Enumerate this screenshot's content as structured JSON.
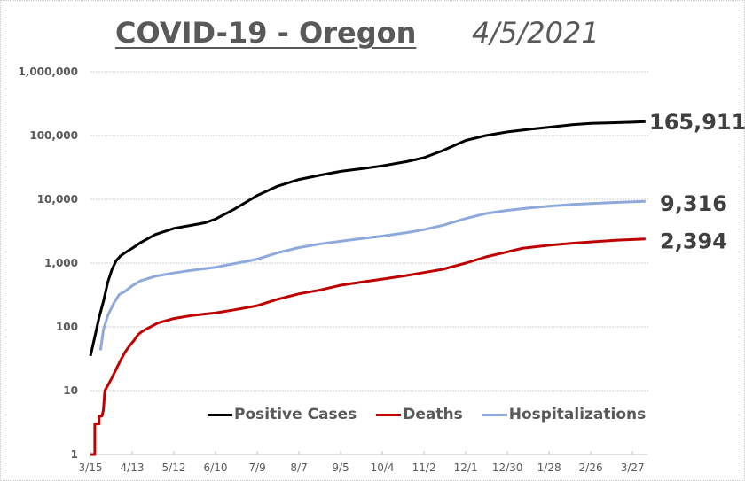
{
  "title": "COVID-19  - Oregon",
  "date": "4/5/2021",
  "chart_data": {
    "type": "line",
    "title": "COVID-19  - Oregon",
    "subtitle": "4/5/2021",
    "xlabel": "",
    "ylabel": "",
    "yscale": "log",
    "ylim": [
      1,
      1000000
    ],
    "y_ticks": [
      1,
      10,
      100,
      1000,
      10000,
      100000,
      1000000
    ],
    "y_tick_labels": [
      "1",
      "10",
      "100",
      "1,000",
      "10,000",
      "100,000",
      "1,000,000"
    ],
    "x_unit": "days since 3/15/2020",
    "xlim": [
      0,
      386
    ],
    "x_ticks": [
      0,
      29,
      58,
      87,
      116,
      145,
      174,
      203,
      232,
      261,
      290,
      319,
      348,
      377
    ],
    "x_tick_labels": [
      "3/15",
      "4/13",
      "5/12",
      "6/10",
      "7/9",
      "8/7",
      "9/5",
      "10/4",
      "11/2",
      "12/1",
      "12/30",
      "1/28",
      "2/26",
      "3/27"
    ],
    "grid": true,
    "legend_position": "bottom-right",
    "series": [
      {
        "name": "Positive Cases",
        "color": "#000000",
        "end_label": "165,911",
        "x": [
          0,
          3,
          6,
          9,
          12,
          15,
          18,
          21,
          25,
          29,
          35,
          45,
          58,
          70,
          80,
          87,
          100,
          110,
          116,
          130,
          145,
          160,
          174,
          190,
          203,
          220,
          232,
          245,
          261,
          275,
          290,
          305,
          319,
          335,
          348,
          365,
          377,
          386
        ],
        "y": [
          35,
          70,
          140,
          250,
          500,
          800,
          1100,
          1300,
          1500,
          1700,
          2100,
          2800,
          3500,
          3900,
          4300,
          4900,
          7000,
          9500,
          11500,
          16000,
          20500,
          24000,
          27500,
          30500,
          33500,
          39000,
          45000,
          58000,
          84000,
          100000,
          114000,
          125000,
          135000,
          148000,
          155000,
          159000,
          162000,
          165911
        ]
      },
      {
        "name": "Deaths",
        "color": "#C00000",
        "end_label": "2,394",
        "x": [
          0,
          3,
          3,
          6,
          6,
          8,
          9,
          10,
          12,
          15,
          18,
          21,
          24,
          27,
          30,
          33,
          36,
          40,
          47,
          58,
          70,
          87,
          100,
          116,
          130,
          145,
          160,
          174,
          190,
          203,
          220,
          232,
          245,
          261,
          275,
          290,
          300,
          319,
          335,
          348,
          365,
          386
        ],
        "y": [
          1,
          1,
          3,
          3,
          4,
          4,
          5,
          10,
          12,
          16,
          22,
          30,
          40,
          50,
          60,
          75,
          85,
          95,
          115,
          135,
          150,
          165,
          185,
          215,
          270,
          330,
          380,
          450,
          510,
          560,
          640,
          710,
          800,
          1000,
          1250,
          1500,
          1700,
          1900,
          2050,
          2150,
          2280,
          2394
        ]
      },
      {
        "name": "Hospitalizations",
        "color": "#8EA9DB",
        "end_label": "9,316",
        "x": [
          7,
          9,
          12,
          16,
          20,
          24,
          29,
          35,
          45,
          58,
          70,
          87,
          100,
          116,
          130,
          145,
          160,
          174,
          190,
          203,
          220,
          232,
          245,
          261,
          275,
          290,
          305,
          319,
          335,
          348,
          365,
          377,
          386
        ],
        "y": [
          43,
          90,
          150,
          230,
          320,
          360,
          440,
          530,
          620,
          700,
          770,
          860,
          980,
          1150,
          1450,
          1750,
          2000,
          2200,
          2450,
          2650,
          3000,
          3350,
          3900,
          5000,
          6000,
          6700,
          7300,
          7800,
          8300,
          8600,
          8950,
          9150,
          9316
        ]
      }
    ]
  }
}
